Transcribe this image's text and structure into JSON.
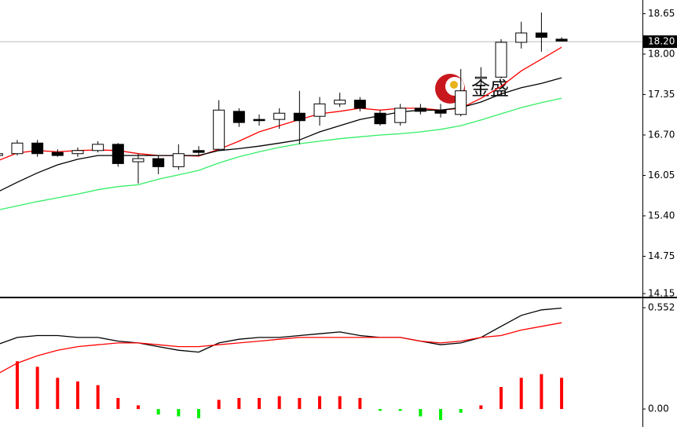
{
  "watermark": "金盛",
  "chart_data": [
    {
      "type": "candlestick",
      "open": [
        16.37,
        16.4,
        16.57,
        16.42,
        16.4,
        16.45,
        16.55,
        16.27,
        16.32,
        16.19,
        16.45,
        16.47,
        17.08,
        16.95,
        16.95,
        17.05,
        17.0,
        17.2,
        17.26,
        17.05,
        16.9,
        17.13,
        17.1,
        17.03,
        17.61,
        17.63,
        18.19,
        18.34,
        18.24
      ],
      "high": [
        16.42,
        16.62,
        16.62,
        16.47,
        16.5,
        16.6,
        16.57,
        16.4,
        16.37,
        16.55,
        16.52,
        17.26,
        17.13,
        17.03,
        17.13,
        17.41,
        17.31,
        17.38,
        17.31,
        17.1,
        17.2,
        17.2,
        17.2,
        17.76,
        17.79,
        18.24,
        18.52,
        18.67,
        18.27
      ],
      "low": [
        16.32,
        16.37,
        16.35,
        16.35,
        16.35,
        16.42,
        16.19,
        15.92,
        16.07,
        16.14,
        16.37,
        16.45,
        16.83,
        16.85,
        16.8,
        16.55,
        16.85,
        17.15,
        17.08,
        16.85,
        16.85,
        17.03,
        16.98,
        17.0,
        17.48,
        17.61,
        18.09,
        18.04,
        18.21
      ],
      "close": [
        16.4,
        16.57,
        16.4,
        16.37,
        16.45,
        16.55,
        16.24,
        16.32,
        16.19,
        16.4,
        16.42,
        17.1,
        16.9,
        16.93,
        17.05,
        16.93,
        17.2,
        17.26,
        17.13,
        16.88,
        17.13,
        17.08,
        17.05,
        17.41,
        17.63,
        18.19,
        18.34,
        18.27,
        18.21
      ],
      "lines": [
        {
          "color": "#ff0000",
          "values": [
            16.28,
            16.41,
            16.45,
            16.43,
            16.45,
            16.46,
            16.45,
            16.4,
            16.37,
            16.37,
            16.36,
            16.47,
            16.6,
            16.75,
            16.85,
            16.95,
            17.04,
            17.08,
            17.13,
            17.1,
            17.13,
            17.13,
            17.1,
            17.13,
            17.29,
            17.48,
            17.73,
            17.92,
            18.11
          ]
        },
        {
          "color": "#000000",
          "values": [
            15.78,
            15.94,
            16.09,
            16.22,
            16.31,
            16.37,
            16.37,
            16.37,
            16.37,
            16.37,
            16.37,
            16.45,
            16.48,
            16.52,
            16.57,
            16.62,
            16.75,
            16.85,
            16.95,
            17.01,
            17.07,
            17.1,
            17.1,
            17.14,
            17.23,
            17.36,
            17.46,
            17.53,
            17.62
          ]
        },
        {
          "color": "#33ee66",
          "values": [
            15.49,
            15.56,
            15.63,
            15.69,
            15.75,
            15.82,
            15.87,
            15.9,
            15.99,
            16.06,
            16.13,
            16.25,
            16.35,
            16.43,
            16.5,
            16.56,
            16.6,
            16.64,
            16.67,
            16.7,
            16.72,
            16.75,
            16.79,
            16.85,
            16.94,
            17.04,
            17.14,
            17.22,
            17.29
          ]
        }
      ],
      "current_price": {
        "value": 18.2,
        "label": "18.20"
      },
      "ylim": [
        14.1,
        18.87
      ],
      "yticks": [
        18.65,
        {
          "value": 18,
          "label": "18.00"
        },
        17.35,
        {
          "value": 16.7,
          "label": "16.70"
        },
        16.05,
        {
          "value": 15.4,
          "label": "15.40"
        },
        14.75,
        14.15
      ]
    },
    {
      "type": "macd",
      "values": [
        0.22,
        0.26,
        0.23,
        0.17,
        0.15,
        0.13,
        0.06,
        0.02,
        -0.03,
        -0.04,
        -0.05,
        0.05,
        0.06,
        0.06,
        0.07,
        0.06,
        0.07,
        0.07,
        0.06,
        -0.01,
        -0.01,
        -0.04,
        -0.06,
        -0.02,
        0.02,
        0.12,
        0.17,
        0.19,
        0.17
      ],
      "up_color": "#ff0000",
      "down_color": "#00ee00",
      "lines": [
        {
          "color": "#000000",
          "values": [
            0.35,
            0.39,
            0.4,
            0.4,
            0.39,
            0.39,
            0.37,
            0.36,
            0.34,
            0.32,
            0.31,
            0.36,
            0.38,
            0.39,
            0.39,
            0.4,
            0.41,
            0.42,
            0.4,
            0.39,
            0.39,
            0.37,
            0.35,
            0.36,
            0.39,
            0.45,
            0.51,
            0.54,
            0.55
          ]
        },
        {
          "color": "#ff0000",
          "values": [
            0.19,
            0.25,
            0.29,
            0.32,
            0.34,
            0.35,
            0.36,
            0.36,
            0.35,
            0.34,
            0.34,
            0.35,
            0.36,
            0.37,
            0.38,
            0.39,
            0.39,
            0.39,
            0.39,
            0.39,
            0.39,
            0.37,
            0.36,
            0.37,
            0.39,
            0.4,
            0.43,
            0.45,
            0.47
          ]
        }
      ],
      "ylim": [
        -0.098,
        0.599
      ],
      "yticks": [
        0.552,
        {
          "value": 0,
          "label": "0.00"
        }
      ]
    }
  ]
}
